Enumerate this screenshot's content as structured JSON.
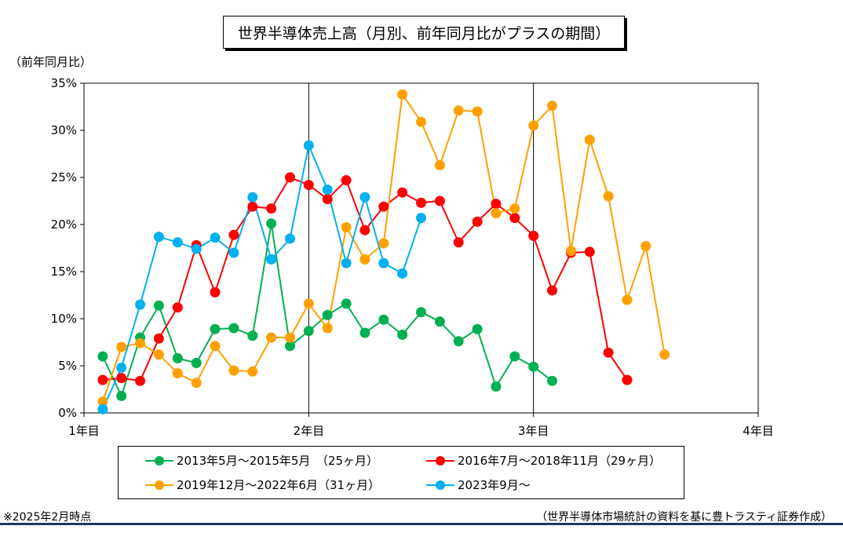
{
  "title": "世界半導体売上高（月別、前年同月比がプラスの期間）",
  "ylabel": "（前年同月比）",
  "footnote_left": "※2025年2月時点",
  "footnote_right": "（世界半導体市場統計の資料を基に豊トラスティ証券作成）",
  "colors": {
    "series1": "#00b050",
    "series2": "#ff0000",
    "series3": "#ffa000",
    "series4": "#00b0f0",
    "navy_bar": "#1f3864"
  },
  "chart_data": {
    "type": "line",
    "x_unit": "年目",
    "x_ticks": [
      "1年目",
      "2年目",
      "3年目",
      "4年目"
    ],
    "xlim": [
      1,
      4
    ],
    "x_step": "1/12 (monthly)",
    "ylim": [
      0,
      35
    ],
    "y_ticks": [
      "0%",
      "5%",
      "10%",
      "15%",
      "20%",
      "25%",
      "30%",
      "35%"
    ],
    "grid": "vertical lines at 2年目 and 3年目",
    "legend_position": "bottom",
    "series": [
      {
        "name": "2013年5月～2015年5月　（25ヶ月）",
        "color": "#00b050",
        "values": [
          6.0,
          1.8,
          8.0,
          11.4,
          5.8,
          5.3,
          8.9,
          9.0,
          8.2,
          20.1,
          7.1,
          8.7,
          10.4,
          11.6,
          8.5,
          9.9,
          8.3,
          10.7,
          9.7,
          7.6,
          8.9,
          2.8,
          6.0,
          4.9,
          3.4
        ]
      },
      {
        "name": "2016年7月～2018年11月（29ヶ月）",
        "color": "#ff0000",
        "values": [
          3.5,
          3.7,
          3.4,
          7.9,
          11.2,
          17.8,
          12.8,
          18.9,
          21.9,
          21.7,
          25.0,
          24.2,
          22.7,
          24.7,
          19.4,
          21.9,
          23.4,
          22.3,
          22.5,
          18.1,
          20.3,
          22.2,
          20.7,
          18.8,
          13.0,
          17.0,
          17.1,
          6.4,
          3.5
        ]
      },
      {
        "name": "2019年12月～2022年6月（31ヶ月）",
        "color": "#ffa000",
        "values": [
          1.2,
          7.0,
          7.4,
          6.2,
          4.2,
          3.2,
          7.1,
          4.5,
          4.4,
          8.0,
          8.0,
          11.6,
          9.0,
          19.7,
          16.3,
          18.0,
          33.8,
          30.9,
          26.3,
          32.1,
          32.0,
          21.2,
          21.7,
          30.5,
          32.6,
          17.2,
          29.0,
          23.0,
          12.0,
          17.7,
          6.2
        ]
      },
      {
        "name": "2023年9月～",
        "color": "#00b0f0",
        "values": [
          0.4,
          4.8,
          11.5,
          18.7,
          18.1,
          17.4,
          18.6,
          17.0,
          22.9,
          16.3,
          18.5,
          28.4,
          23.7,
          15.9,
          22.9,
          15.9,
          14.8,
          20.7
        ]
      }
    ]
  }
}
